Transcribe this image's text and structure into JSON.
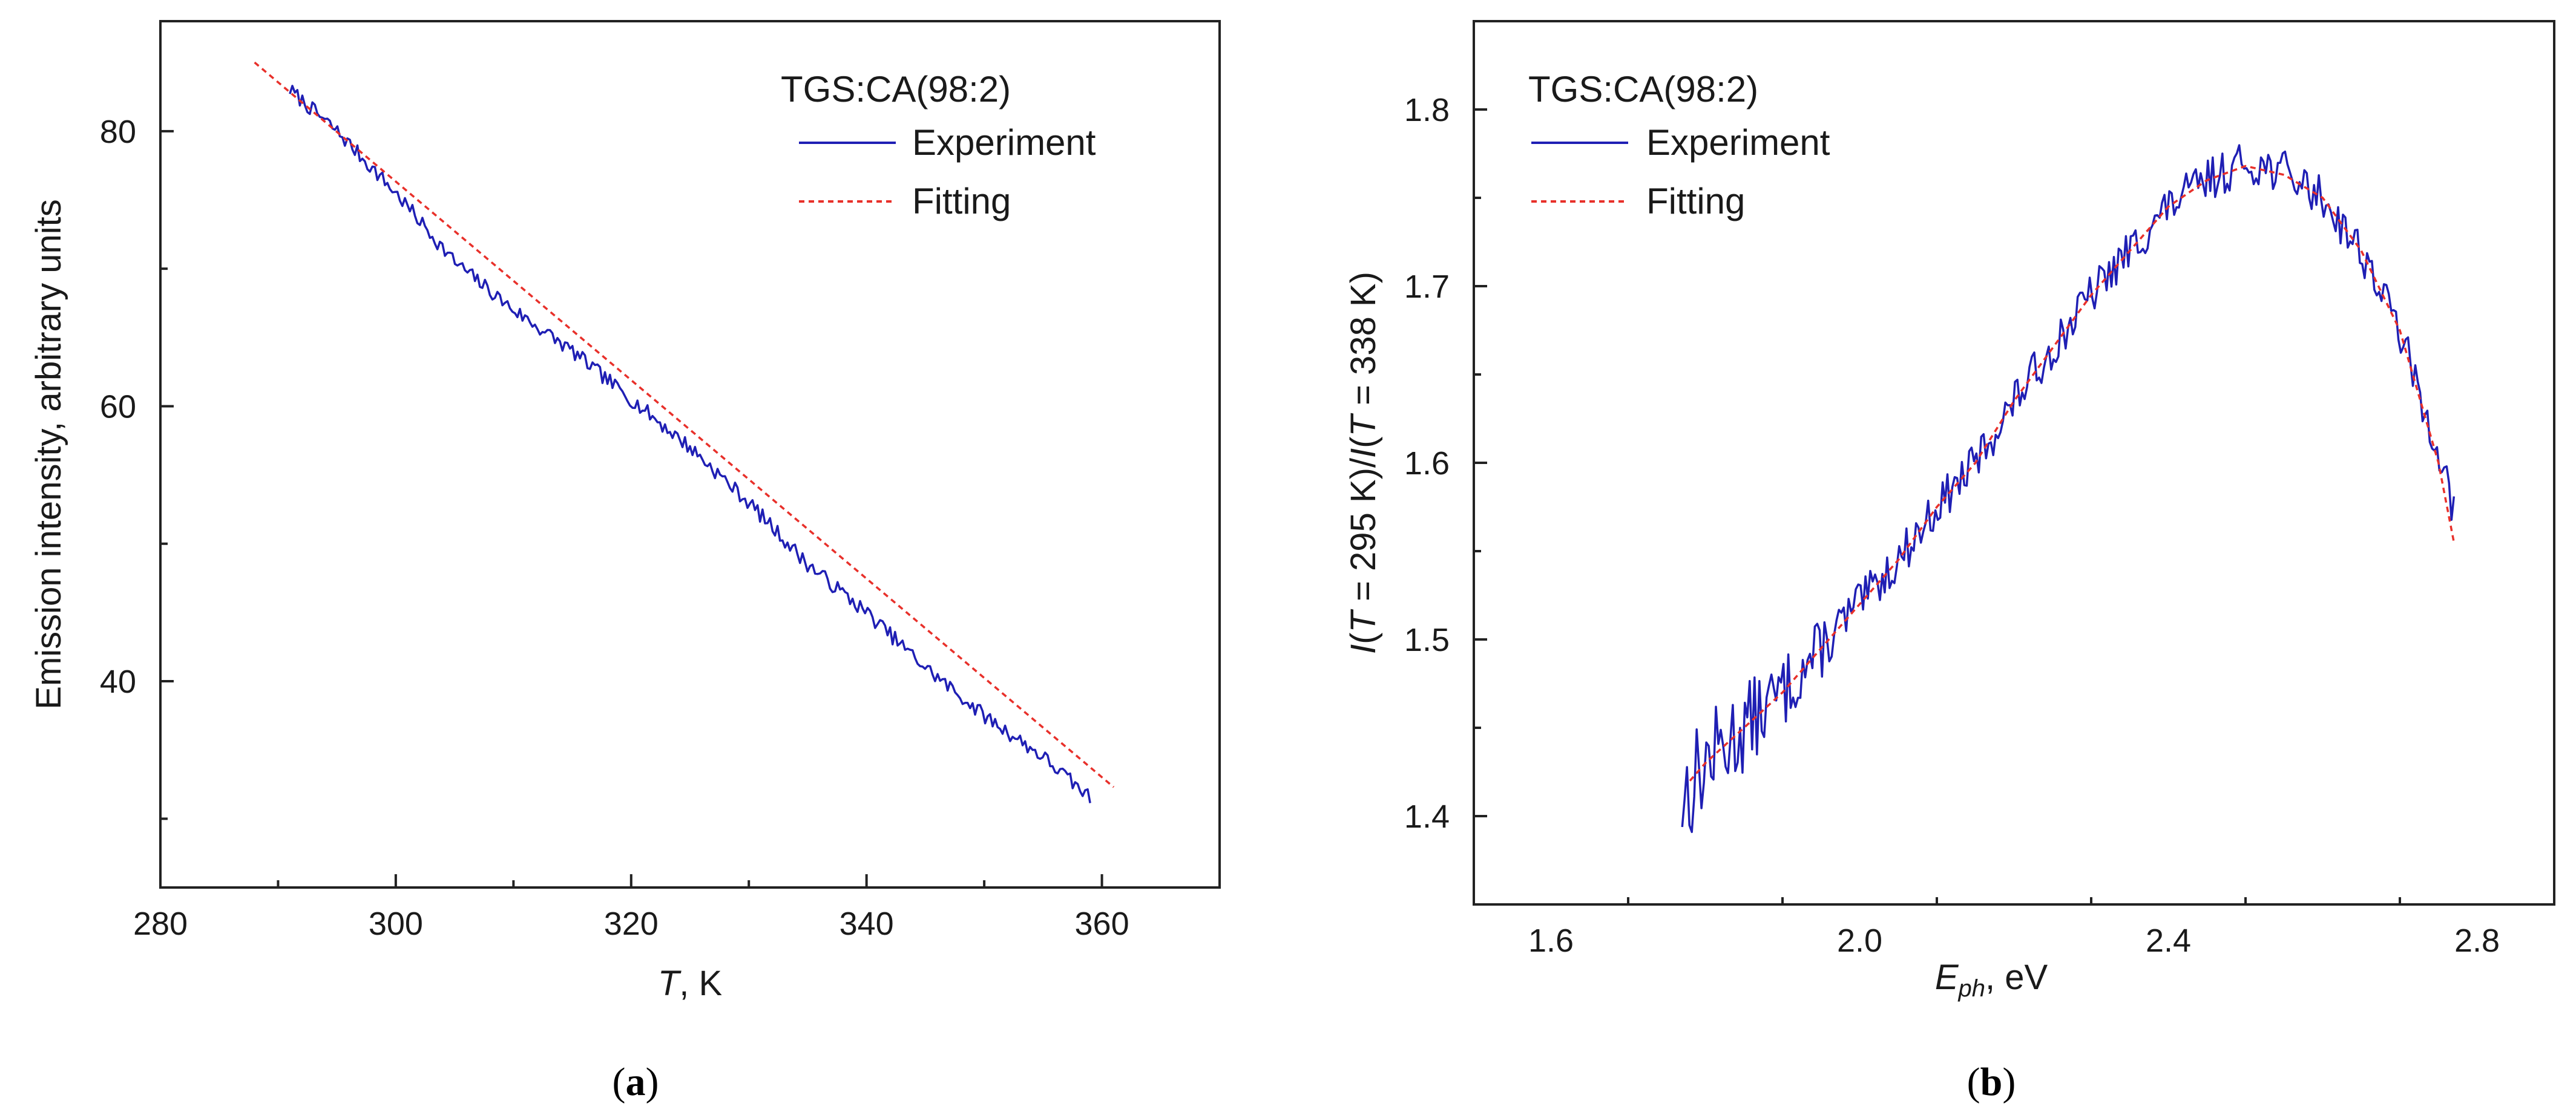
{
  "chart_data": [
    {
      "panel": "a",
      "panel_label": {
        "open": "(",
        "letter": "a",
        "close": ")"
      },
      "type": "line",
      "title": "",
      "legend_title": "TGS:CA(98:2)",
      "legend_position": "top-right",
      "xlabel": {
        "italic": "T",
        "rest": ", K"
      },
      "ylabel": "Emission intensity, arbitrary units",
      "xlim": [
        280,
        370
      ],
      "ylim": [
        25,
        88
      ],
      "xticks": [
        280,
        300,
        320,
        340,
        360
      ],
      "yticks": [
        40,
        60,
        80
      ],
      "series": [
        {
          "name": "Experiment",
          "style": "solid",
          "color": "#1f1fb4",
          "x": [
            291,
            295,
            300,
            305,
            310,
            315,
            320,
            325,
            330,
            335,
            340,
            345,
            350,
            355,
            359
          ],
          "y": [
            83.0,
            80.0,
            75.5,
            70.5,
            67.0,
            64.0,
            60.5,
            57.0,
            53.0,
            48.5,
            45.0,
            41.0,
            37.5,
            34.5,
            31.5
          ],
          "noise": 0.55
        },
        {
          "name": "Fitting",
          "style": "dashed",
          "color": "#e8302a",
          "x": [
            288,
            361
          ],
          "y": [
            85.0,
            32.3
          ]
        }
      ]
    },
    {
      "panel": "b",
      "panel_label": {
        "open": "(",
        "letter": "b",
        "close": ")"
      },
      "type": "line",
      "title": "",
      "legend_title": "TGS:CA(98:2)",
      "legend_position": "top-left",
      "xlabel": {
        "italic": "E",
        "sub": "ph",
        "rest": ", eV"
      },
      "ylabel": {
        "p1": "I",
        "p2": "(",
        "p3": "T",
        "p4": " = 295 K)/",
        "p5": "I",
        "p6": "(",
        "p7": "T",
        "p8": " = 338 K)"
      },
      "xlim": [
        1.5,
        2.9
      ],
      "ylim": [
        1.35,
        1.85
      ],
      "xticks": [
        1.6,
        2.0,
        2.4,
        2.8
      ],
      "yticks": [
        1.4,
        1.5,
        1.6,
        1.7,
        1.8
      ],
      "series": [
        {
          "name": "Experiment",
          "style": "solid",
          "color": "#1f1fb4",
          "x": [
            1.77,
            1.8,
            1.85,
            1.9,
            1.95,
            2.0,
            2.05,
            2.1,
            2.15,
            2.2,
            2.25,
            2.3,
            2.35,
            2.4,
            2.45,
            2.5,
            2.55,
            2.6,
            2.65,
            2.7,
            2.73,
            2.75,
            2.77
          ],
          "y": [
            1.41,
            1.43,
            1.45,
            1.47,
            1.495,
            1.52,
            1.545,
            1.575,
            1.6,
            1.635,
            1.665,
            1.695,
            1.72,
            1.745,
            1.76,
            1.77,
            1.765,
            1.75,
            1.72,
            1.675,
            1.63,
            1.61,
            1.57
          ],
          "noise": 0.012
        },
        {
          "name": "Fitting",
          "style": "dashed",
          "color": "#e8302a",
          "x": [
            1.78,
            1.8,
            1.85,
            1.9,
            1.95,
            2.0,
            2.05,
            2.1,
            2.15,
            2.2,
            2.25,
            2.3,
            2.35,
            2.4,
            2.45,
            2.5,
            2.55,
            2.6,
            2.65,
            2.7,
            2.73,
            2.75,
            2.77
          ],
          "y": [
            1.42,
            1.43,
            1.45,
            1.47,
            1.495,
            1.52,
            1.545,
            1.575,
            1.6,
            1.635,
            1.665,
            1.695,
            1.72,
            1.745,
            1.76,
            1.768,
            1.763,
            1.75,
            1.72,
            1.675,
            1.63,
            1.6,
            1.555
          ]
        }
      ]
    }
  ]
}
